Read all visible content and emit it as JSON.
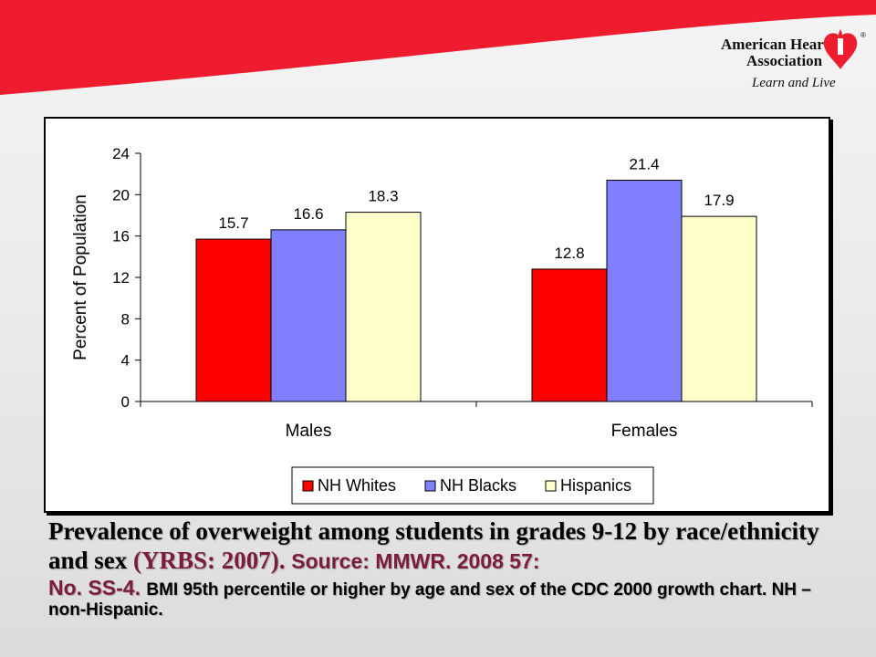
{
  "brand": {
    "name_line1": "American Heart",
    "name_line2": "Association",
    "tagline": "Learn and Live",
    "registered_mark": "®",
    "red": "#ee1c2e",
    "accent": "#7b1c3e"
  },
  "caption": {
    "main": "Prevalence of overweight among students in grades 9-12 by race/ethnicity and sex ",
    "study": "(YRBS: 2007). ",
    "source_a": "Source: MMWR. 2008 57:",
    "source_b": "No. SS-4. ",
    "note": "BMI 95th percentile or higher by age and sex of the CDC 2000 growth chart. NH – non-Hispanic."
  },
  "chart_data": {
    "type": "bar",
    "categories": [
      "Males",
      "Females"
    ],
    "series": [
      {
        "name": "NH Whites",
        "color": "#ff0000",
        "values": [
          15.7,
          12.8
        ]
      },
      {
        "name": "NH Blacks",
        "color": "#8080ff",
        "values": [
          16.6,
          21.4
        ]
      },
      {
        "name": "Hispanics",
        "color": "#ffffcc",
        "values": [
          18.3,
          17.9
        ]
      }
    ],
    "ylabel": "Percent of Population",
    "xlabel": "",
    "ylim": [
      0,
      24
    ],
    "yticks": [
      0,
      4,
      8,
      12,
      16,
      20,
      24
    ],
    "grid": false,
    "legend_position": "bottom"
  }
}
